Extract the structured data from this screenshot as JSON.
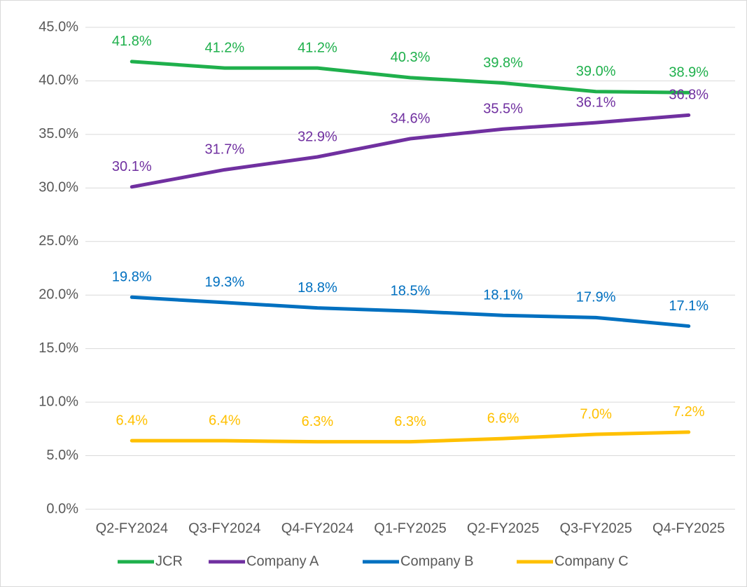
{
  "chart_data": {
    "type": "line",
    "categories": [
      "Q2-FY2024",
      "Q3-FY2024",
      "Q4-FY2024",
      "Q1-FY2025",
      "Q2-FY2025",
      "Q3-FY2025",
      "Q4-FY2025"
    ],
    "series": [
      {
        "name": "JCR",
        "color": "#1fb04c",
        "values": [
          41.8,
          41.2,
          41.2,
          40.3,
          39.8,
          39.0,
          38.9
        ],
        "value_labels": [
          "41.8%",
          "41.2%",
          "41.2%",
          "40.3%",
          "39.8%",
          "39.0%",
          "38.9%"
        ]
      },
      {
        "name": "Company A",
        "color": "#7030a0",
        "values": [
          30.1,
          31.7,
          32.9,
          34.6,
          35.5,
          36.1,
          36.8
        ],
        "value_labels": [
          "30.1%",
          "31.7%",
          "32.9%",
          "34.6%",
          "35.5%",
          "36.1%",
          "36.8%"
        ]
      },
      {
        "name": "Company B",
        "color": "#0070c0",
        "values": [
          19.8,
          19.3,
          18.8,
          18.5,
          18.1,
          17.9,
          17.1
        ],
        "value_labels": [
          "19.8%",
          "19.3%",
          "18.8%",
          "18.5%",
          "18.1%",
          "17.9%",
          "17.1%"
        ]
      },
      {
        "name": "Company C",
        "color": "#ffc000",
        "values": [
          6.4,
          6.4,
          6.3,
          6.3,
          6.6,
          7.0,
          7.2
        ],
        "value_labels": [
          "6.4%",
          "6.4%",
          "6.3%",
          "6.3%",
          "6.6%",
          "7.0%",
          "7.2%"
        ]
      }
    ],
    "ylim": [
      0,
      45
    ],
    "yticks": [
      {
        "value": 0,
        "label": "0.0%"
      },
      {
        "value": 5,
        "label": "5.0%"
      },
      {
        "value": 10,
        "label": "10.0%"
      },
      {
        "value": 15,
        "label": "15.0%"
      },
      {
        "value": 20,
        "label": "20.0%"
      },
      {
        "value": 25,
        "label": "25.0%"
      },
      {
        "value": 30,
        "label": "30.0%"
      },
      {
        "value": 35,
        "label": "35.0%"
      },
      {
        "value": 40,
        "label": "40.0%"
      },
      {
        "value": 45,
        "label": "45.0%"
      }
    ],
    "grid": true,
    "legend": "bottom"
  }
}
